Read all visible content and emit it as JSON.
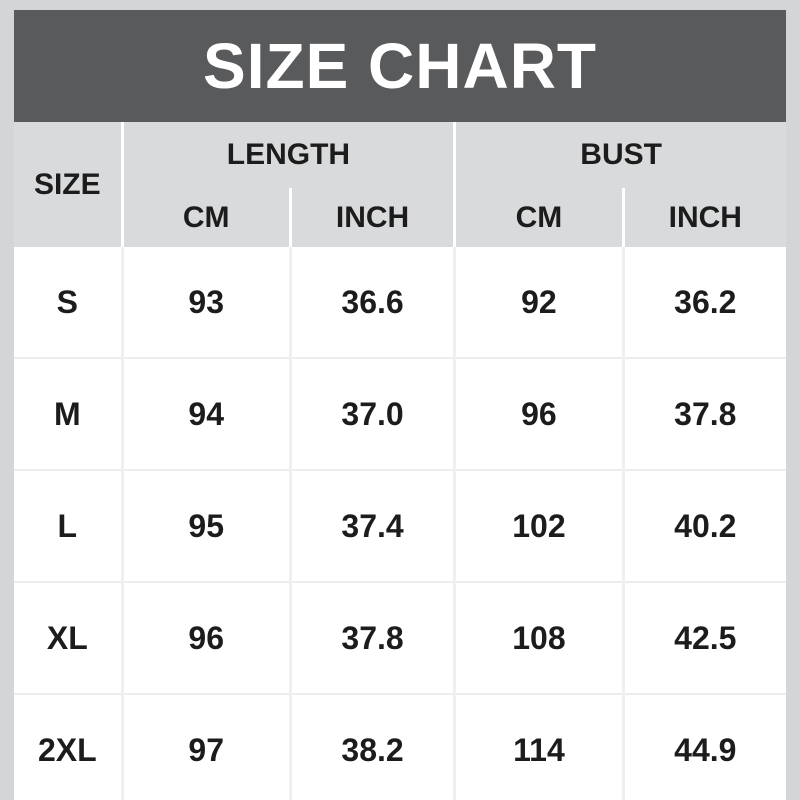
{
  "title": "SIZE CHART",
  "colors": {
    "page_bg": "#d4d5d7",
    "banner_bg": "#595a5c",
    "banner_text": "#ffffff",
    "header_bg": "#d9dadb",
    "cell_bg": "#ffffff",
    "text": "#1c1c1c"
  },
  "table": {
    "size_header": "SIZE",
    "groups": [
      {
        "label": "LENGTH"
      },
      {
        "label": "BUST"
      }
    ],
    "units": [
      "CM",
      "INCH",
      "CM",
      "INCH"
    ],
    "rows": [
      {
        "size": "S",
        "values": [
          "93",
          "36.6",
          "92",
          "36.2"
        ]
      },
      {
        "size": "M",
        "values": [
          "94",
          "37.0",
          "96",
          "37.8"
        ]
      },
      {
        "size": "L",
        "values": [
          "95",
          "37.4",
          "102",
          "40.2"
        ]
      },
      {
        "size": "XL",
        "values": [
          "96",
          "37.8",
          "108",
          "42.5"
        ]
      },
      {
        "size": "2XL",
        "values": [
          "97",
          "38.2",
          "114",
          "44.9"
        ]
      }
    ]
  },
  "chart_data": {
    "type": "table",
    "title": "SIZE CHART",
    "column_groups": [
      "SIZE",
      "LENGTH",
      "BUST"
    ],
    "columns": [
      "SIZE",
      "LENGTH CM",
      "LENGTH INCH",
      "BUST CM",
      "BUST INCH"
    ],
    "rows": [
      [
        "S",
        93,
        36.6,
        92,
        36.2
      ],
      [
        "M",
        94,
        37.0,
        96,
        37.8
      ],
      [
        "L",
        95,
        37.4,
        102,
        40.2
      ],
      [
        "XL",
        96,
        37.8,
        108,
        42.5
      ],
      [
        "2XL",
        97,
        38.2,
        114,
        44.9
      ]
    ]
  }
}
